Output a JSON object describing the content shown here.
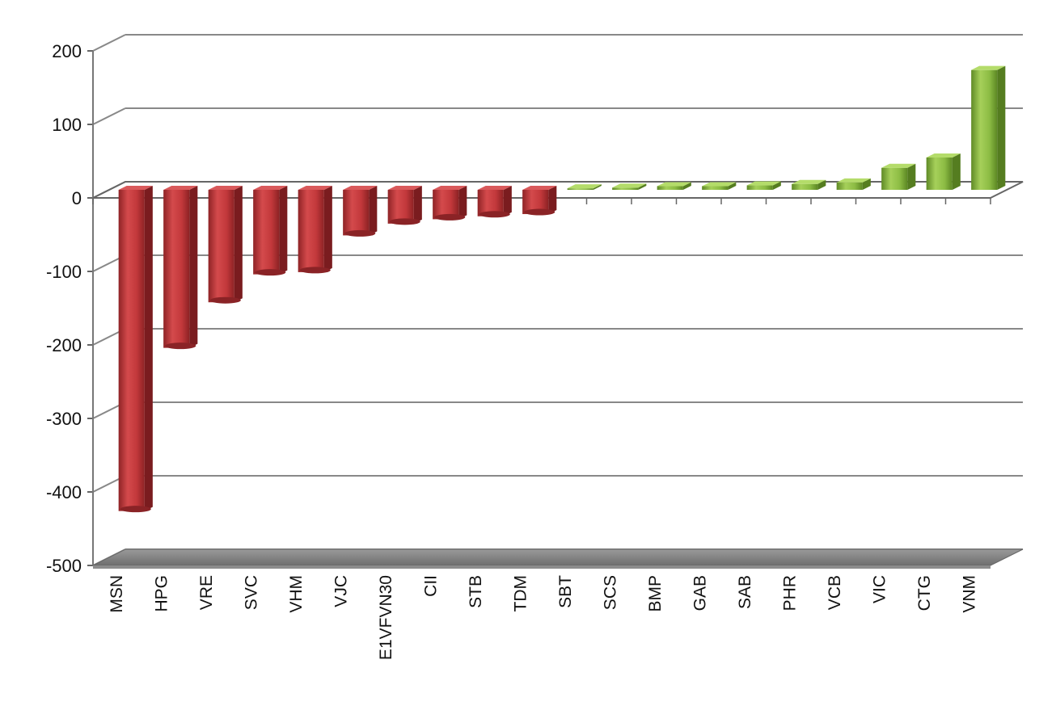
{
  "chart_data": {
    "type": "bar",
    "style": "3d-column",
    "title": "",
    "xlabel": "",
    "ylabel": "",
    "ylim": [
      -500,
      200
    ],
    "yticks": [
      200,
      100,
      0,
      -100,
      -200,
      -300,
      -400,
      -500
    ],
    "grid": true,
    "legend": "none",
    "categories": [
      "MSN",
      "HPG",
      "VRE",
      "SVC",
      "VHM",
      "VJC",
      "E1VFVN30",
      "CII",
      "STB",
      "TDM",
      "SBT",
      "SCS",
      "BMP",
      "GAB",
      "SAB",
      "PHR",
      "VCB",
      "VIC",
      "CTG",
      "VNM"
    ],
    "values": [
      -437,
      -215,
      -153,
      -115,
      -112,
      -62,
      -46,
      -40,
      -36,
      -33,
      2,
      3,
      5,
      5,
      6,
      8,
      10,
      30,
      44,
      163
    ]
  },
  "colors": {
    "negative": "#c0393c",
    "positive": "#8ab841",
    "floor": "#8c8c8c",
    "grid": "#888888"
  }
}
